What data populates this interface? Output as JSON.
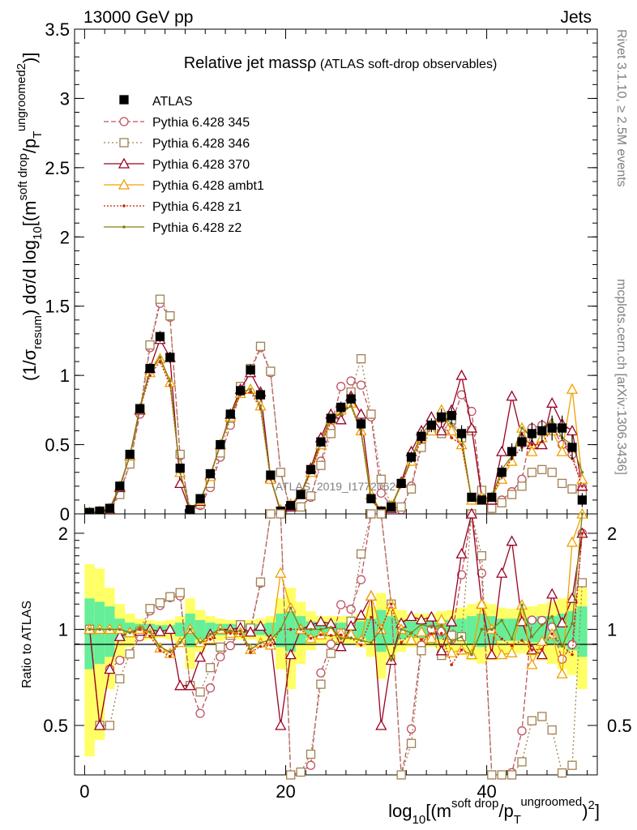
{
  "header": {
    "left": "13000 GeV pp",
    "right": "Jets"
  },
  "side_labels": {
    "rivet": "Rivet 3.1.10, ≥ 2.5M events",
    "mcplots": "mcplots.cern.ch [arXiv:1306.3436]"
  },
  "chart_data": {
    "type": "line",
    "title": "Relative jet massρ (ATLAS soft-drop observables)",
    "watermark": "ATLAS_2019_I1772062",
    "xlabel": "log10[(m^soft drop/p_T^ungroomed)^2]",
    "xlabel_parts": {
      "pre": "log",
      "sub10": "10",
      "open": "[(m",
      "sup1": "soft drop",
      "slash": "/p",
      "subT": "T",
      "sup2": "ungroomed",
      "close": ")",
      "sq": "2",
      "end": "]"
    },
    "ylabel": "(1/σresum) dσ/d log10[(m^soft drop/p_T^ungroomed)^2]",
    "ylabel_parts": {
      "a": "(1/σ",
      "b": "resum",
      "c": ") dσ/d log",
      "d": "10",
      "e": "[(m",
      "f": "soft drop",
      "g": "/p",
      "h": "T",
      "i": "ungroomed",
      "j": "2",
      "k": ")]"
    },
    "ratio_ylabel": "Ratio to ATLAS",
    "xlim": [
      -1,
      51
    ],
    "ylim": [
      0,
      3.5
    ],
    "ratio_ylim": [
      0.35,
      2.3
    ],
    "x_ticks": [
      "0",
      "20",
      "40"
    ],
    "x_tick_values": [
      0,
      20,
      40
    ],
    "y_ticks": [
      "0",
      "0.5",
      "1",
      "1.5",
      "2",
      "2.5",
      "3",
      "3.5"
    ],
    "y_tick_values": [
      0,
      0.5,
      1,
      1.5,
      2,
      2.5,
      3,
      3.5
    ],
    "ratio_y_ticks": [
      "0.5",
      "1",
      "2"
    ],
    "ratio_y_tick_values": [
      0.5,
      1,
      2
    ],
    "x": [
      0.5,
      1.5,
      2.5,
      3.5,
      4.5,
      5.5,
      6.5,
      7.5,
      8.5,
      9.5,
      10.5,
      11.5,
      12.5,
      13.5,
      14.5,
      15.5,
      16.5,
      17.5,
      18.5,
      19.5,
      20.5,
      21.5,
      22.5,
      23.5,
      24.5,
      25.5,
      26.5,
      27.5,
      28.5,
      29.5,
      30.5,
      31.5,
      32.5,
      33.5,
      34.5,
      35.5,
      36.5,
      37.5,
      38.5,
      39.5,
      40.5,
      41.5,
      42.5,
      43.5,
      44.5,
      45.5,
      46.5,
      47.5,
      48.5,
      49.5
    ],
    "data": {
      "name": "ATLAS",
      "color": "#000000",
      "values": [
        0.01,
        0.02,
        0.04,
        0.2,
        0.43,
        0.76,
        1.05,
        1.28,
        1.13,
        0.33,
        0.03,
        0.11,
        0.29,
        0.5,
        0.72,
        0.89,
        1.04,
        0.86,
        0.28,
        0.02,
        0.06,
        0.14,
        0.32,
        0.52,
        0.69,
        0.77,
        0.83,
        0.65,
        0.11,
        0.02,
        0.05,
        0.22,
        0.41,
        0.56,
        0.64,
        0.7,
        0.71,
        0.58,
        0.12,
        0.1,
        0.12,
        0.3,
        0.45,
        0.52,
        0.58,
        0.6,
        0.62,
        0.62,
        0.48,
        0.1
      ],
      "err": [
        0.01,
        0.01,
        0.01,
        0.02,
        0.02,
        0.03,
        0.03,
        0.04,
        0.04,
        0.03,
        0.01,
        0.02,
        0.02,
        0.03,
        0.03,
        0.03,
        0.04,
        0.04,
        0.03,
        0.01,
        0.01,
        0.02,
        0.02,
        0.03,
        0.03,
        0.04,
        0.04,
        0.04,
        0.02,
        0.01,
        0.01,
        0.03,
        0.04,
        0.05,
        0.05,
        0.06,
        0.06,
        0.06,
        0.03,
        0.03,
        0.03,
        0.05,
        0.06,
        0.07,
        0.08,
        0.08,
        0.09,
        0.09,
        0.09,
        0.05
      ]
    },
    "band": {
      "inner_color": "#66ee99",
      "outer_color": "#ffff66",
      "inner": [
        0.25,
        0.22,
        0.18,
        0.08,
        0.05,
        0.04,
        0.04,
        0.03,
        0.03,
        0.05,
        0.12,
        0.07,
        0.05,
        0.04,
        0.04,
        0.04,
        0.04,
        0.04,
        0.05,
        0.12,
        0.15,
        0.1,
        0.06,
        0.05,
        0.05,
        0.05,
        0.05,
        0.06,
        0.08,
        0.15,
        0.1,
        0.07,
        0.06,
        0.06,
        0.06,
        0.07,
        0.07,
        0.08,
        0.1,
        0.12,
        0.1,
        0.08,
        0.08,
        0.08,
        0.09,
        0.1,
        0.1,
        0.12,
        0.14,
        0.18
      ],
      "outer": [
        0.6,
        0.55,
        0.35,
        0.2,
        0.12,
        0.08,
        0.07,
        0.06,
        0.07,
        0.1,
        0.25,
        0.15,
        0.1,
        0.08,
        0.07,
        0.07,
        0.07,
        0.08,
        0.1,
        0.25,
        0.35,
        0.22,
        0.14,
        0.1,
        0.1,
        0.1,
        0.1,
        0.12,
        0.18,
        0.3,
        0.2,
        0.15,
        0.12,
        0.12,
        0.12,
        0.14,
        0.15,
        0.17,
        0.2,
        0.22,
        0.2,
        0.17,
        0.16,
        0.16,
        0.18,
        0.2,
        0.22,
        0.25,
        0.28,
        0.35
      ]
    },
    "series": [
      {
        "name": "Pythia 6.428 345",
        "color": "#c05060",
        "dash": "6,3",
        "marker": "circle",
        "values": [
          0.01,
          0.01,
          0.03,
          0.16,
          0.36,
          0.72,
          1.2,
          1.52,
          1.42,
          0.42,
          0.02,
          0.06,
          0.19,
          0.41,
          0.64,
          0.88,
          1.03,
          1.2,
          1.02,
          0.3,
          0.02,
          0.05,
          0.12,
          0.38,
          0.62,
          0.92,
          0.96,
          0.93,
          0.7,
          0.15,
          0.06,
          0.03,
          0.2,
          0.5,
          0.64,
          0.69,
          0.66,
          0.86,
          0.74,
          0.15,
          0.04,
          0.1,
          0.16,
          0.25,
          0.62,
          0.64,
          0.63,
          0.5,
          0.43,
          0.2
        ]
      },
      {
        "name": "Pythia 6.428 346",
        "color": "#a08050",
        "dash": "2,3",
        "marker": "square",
        "values": [
          0.01,
          0.01,
          0.02,
          0.14,
          0.36,
          0.75,
          1.22,
          1.55,
          1.43,
          0.43,
          0.02,
          0.07,
          0.22,
          0.44,
          0.69,
          0.92,
          1.05,
          1.21,
          1.03,
          0.3,
          0.02,
          0.05,
          0.13,
          0.35,
          0.58,
          0.75,
          0.88,
          1.12,
          0.72,
          0.25,
          0.06,
          0.05,
          0.18,
          0.48,
          0.6,
          0.58,
          0.68,
          0.55,
          0.6,
          0.17,
          0.04,
          0.08,
          0.14,
          0.2,
          0.3,
          0.32,
          0.3,
          0.22,
          0.18,
          0.14
        ]
      },
      {
        "name": "Pythia 6.428 370",
        "color": "#990022",
        "dash": "",
        "marker": "triangle",
        "values": [
          0.01,
          0.01,
          0.03,
          0.19,
          0.42,
          0.75,
          1.05,
          1.26,
          1.13,
          0.22,
          0.02,
          0.09,
          0.28,
          0.5,
          0.72,
          0.9,
          1.02,
          0.88,
          0.26,
          0.01,
          0.05,
          0.14,
          0.33,
          0.55,
          0.72,
          0.68,
          0.85,
          0.72,
          0.14,
          0.01,
          0.04,
          0.23,
          0.45,
          0.6,
          0.7,
          0.6,
          0.75,
          1.0,
          0.62,
          0.12,
          0.1,
          0.45,
          0.85,
          0.55,
          0.5,
          0.5,
          0.8,
          0.65,
          0.6,
          0.2
        ]
      },
      {
        "name": "Pythia 6.428 ambt1",
        "color": "#f0a000",
        "dash": "",
        "marker": "triangle",
        "values": [
          0.01,
          0.02,
          0.04,
          0.2,
          0.42,
          0.76,
          1.02,
          1.12,
          0.95,
          0.3,
          0.03,
          0.1,
          0.27,
          0.5,
          0.7,
          0.87,
          0.9,
          0.78,
          0.25,
          0.03,
          0.07,
          0.14,
          0.3,
          0.5,
          0.68,
          0.75,
          0.8,
          0.6,
          0.14,
          0.02,
          0.06,
          0.22,
          0.38,
          0.55,
          0.6,
          0.75,
          0.6,
          0.5,
          0.1,
          0.12,
          0.12,
          0.25,
          0.38,
          0.62,
          0.45,
          0.55,
          0.6,
          0.45,
          0.9,
          0.25
        ]
      },
      {
        "name": "Pythia 6.428 z1",
        "color": "#cc2200",
        "dash": "2,2",
        "marker": "dot",
        "values": [
          0.01,
          0.02,
          0.04,
          0.2,
          0.42,
          0.76,
          1.0,
          1.1,
          0.93,
          0.3,
          0.03,
          0.1,
          0.27,
          0.5,
          0.7,
          0.86,
          0.88,
          0.76,
          0.25,
          0.02,
          0.06,
          0.14,
          0.3,
          0.5,
          0.66,
          0.74,
          0.78,
          0.58,
          0.12,
          0.02,
          0.06,
          0.2,
          0.4,
          0.52,
          0.62,
          0.68,
          0.55,
          0.5,
          0.1,
          0.1,
          0.12,
          0.28,
          0.4,
          0.48,
          0.5,
          0.52,
          0.6,
          0.55,
          0.4,
          0.2
        ]
      },
      {
        "name": "Pythia 6.428 z2",
        "color": "#808010",
        "dash": "",
        "marker": "dot",
        "values": [
          0.01,
          0.02,
          0.04,
          0.2,
          0.42,
          0.77,
          1.03,
          1.13,
          0.96,
          0.3,
          0.03,
          0.1,
          0.28,
          0.5,
          0.71,
          0.88,
          0.9,
          0.78,
          0.26,
          0.02,
          0.07,
          0.14,
          0.32,
          0.52,
          0.7,
          0.72,
          0.78,
          0.6,
          0.1,
          0.02,
          0.04,
          0.22,
          0.4,
          0.58,
          0.65,
          0.72,
          0.65,
          0.55,
          0.1,
          0.1,
          0.12,
          0.32,
          0.42,
          0.62,
          0.55,
          0.62,
          0.68,
          0.55,
          0.5,
          0.3
        ]
      }
    ]
  }
}
